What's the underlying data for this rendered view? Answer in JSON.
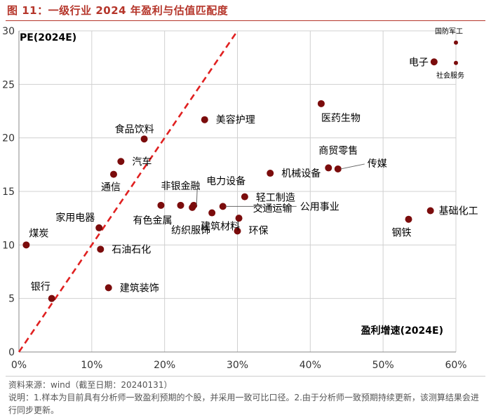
{
  "figure": {
    "title": "图 11：一级行业 2024 年盈利与估值匹配度",
    "source": "资料来源：wind（截至日期：20240131）",
    "note": "说明：1.样本为目前具有分析师一致盈利预期的个股，并采用一致可比口径。2.由于分析师一致预期持续更新，该测算结果会进行同步更新。"
  },
  "colors": {
    "accent": "#b5352a",
    "point": "#7b0c0c",
    "refline": "#e02020"
  },
  "chart_data": {
    "type": "scatter",
    "title": "",
    "ylabel": "PE(2024E)",
    "xlabel": "盈利增速(2024E)",
    "xlim": [
      0,
      60
    ],
    "ylim": [
      0,
      30
    ],
    "xticks": [
      0,
      10,
      20,
      30,
      40,
      50,
      60
    ],
    "xtick_labels": [
      "0%",
      "10%",
      "20%",
      "30%",
      "40%",
      "50%",
      "60%"
    ],
    "yticks": [
      0,
      5,
      10,
      15,
      20,
      25,
      30
    ],
    "ytick_labels": [
      "0",
      "5",
      "10",
      "15",
      "20",
      "25",
      "30"
    ],
    "reference_line": {
      "style": "dashed",
      "from": [
        0,
        0
      ],
      "to": [
        30,
        30
      ]
    },
    "points": [
      {
        "name": "煤炭",
        "x": 1.0,
        "y": 10.0
      },
      {
        "name": "银行",
        "x": 4.5,
        "y": 5.0
      },
      {
        "name": "家用电器",
        "x": 11.0,
        "y": 11.6
      },
      {
        "name": "石油石化",
        "x": 11.2,
        "y": 9.6
      },
      {
        "name": "建筑装饰",
        "x": 12.3,
        "y": 6.0
      },
      {
        "name": "通信",
        "x": 13.0,
        "y": 16.6
      },
      {
        "name": "汽车",
        "x": 14.0,
        "y": 17.8
      },
      {
        "name": "食品饮料",
        "x": 17.2,
        "y": 19.9
      },
      {
        "name": "有色金属",
        "x": 19.5,
        "y": 13.7
      },
      {
        "name": "非银金融",
        "x": 22.2,
        "y": 13.7
      },
      {
        "name": "纺织服饰",
        "x": 23.8,
        "y": 13.5
      },
      {
        "name": "电力设备",
        "x": 24.0,
        "y": 13.7
      },
      {
        "name": "美容护理",
        "x": 25.5,
        "y": 21.7
      },
      {
        "name": "建筑材料",
        "x": 26.5,
        "y": 13.0
      },
      {
        "name": "公用事业",
        "x": 28.0,
        "y": 13.6
      },
      {
        "name": "环保",
        "x": 30.0,
        "y": 11.3
      },
      {
        "name": "交通运输",
        "x": 30.2,
        "y": 12.5
      },
      {
        "name": "轻工制造",
        "x": 31.0,
        "y": 14.5
      },
      {
        "name": "机械设备",
        "x": 34.5,
        "y": 16.7
      },
      {
        "name": "医药生物",
        "x": 41.5,
        "y": 23.2
      },
      {
        "name": "商贸零售",
        "x": 42.5,
        "y": 17.2
      },
      {
        "name": "传媒",
        "x": 43.8,
        "y": 17.1
      },
      {
        "name": "钢铁",
        "x": 53.5,
        "y": 12.4
      },
      {
        "name": "基础化工",
        "x": 56.5,
        "y": 13.2
      },
      {
        "name": "电子",
        "x": 57.0,
        "y": 27.1
      },
      {
        "name": "国防军工",
        "x": 60.0,
        "y": 28.9
      },
      {
        "name": "社会服务",
        "x": 60.0,
        "y": 27.0
      }
    ]
  }
}
